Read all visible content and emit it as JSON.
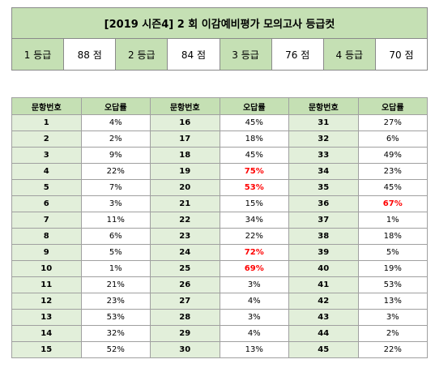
{
  "title": "[2019 시즌4] 2 회 이감예비평가 모의고사 등급컷",
  "grade_cuts": [
    {
      "grade": "1 등급",
      "score": "88 점"
    },
    {
      "grade": "2 등급",
      "score": "84 점"
    },
    {
      "grade": "3 등급",
      "score": "76 점"
    },
    {
      "grade": "4 등급",
      "score": "70 점"
    }
  ],
  "table_headers": {
    "number": "문항번호",
    "rate": "오답률"
  },
  "hot_color": "#ff0000",
  "rows": [
    [
      {
        "n": "1",
        "r": "4%",
        "hot": false
      },
      {
        "n": "16",
        "r": "45%",
        "hot": false
      },
      {
        "n": "31",
        "r": "27%",
        "hot": false
      }
    ],
    [
      {
        "n": "2",
        "r": "2%",
        "hot": false
      },
      {
        "n": "17",
        "r": "18%",
        "hot": false
      },
      {
        "n": "32",
        "r": "6%",
        "hot": false
      }
    ],
    [
      {
        "n": "3",
        "r": "9%",
        "hot": false
      },
      {
        "n": "18",
        "r": "45%",
        "hot": false
      },
      {
        "n": "33",
        "r": "49%",
        "hot": false
      }
    ],
    [
      {
        "n": "4",
        "r": "22%",
        "hot": false
      },
      {
        "n": "19",
        "r": "75%",
        "hot": true
      },
      {
        "n": "34",
        "r": "23%",
        "hot": false
      }
    ],
    [
      {
        "n": "5",
        "r": "7%",
        "hot": false
      },
      {
        "n": "20",
        "r": "53%",
        "hot": true
      },
      {
        "n": "35",
        "r": "45%",
        "hot": false
      }
    ],
    [
      {
        "n": "6",
        "r": "3%",
        "hot": false
      },
      {
        "n": "21",
        "r": "15%",
        "hot": false
      },
      {
        "n": "36",
        "r": "67%",
        "hot": true
      }
    ],
    [
      {
        "n": "7",
        "r": "11%",
        "hot": false
      },
      {
        "n": "22",
        "r": "34%",
        "hot": false
      },
      {
        "n": "37",
        "r": "1%",
        "hot": false
      }
    ],
    [
      {
        "n": "8",
        "r": "6%",
        "hot": false
      },
      {
        "n": "23",
        "r": "22%",
        "hot": false
      },
      {
        "n": "38",
        "r": "18%",
        "hot": false
      }
    ],
    [
      {
        "n": "9",
        "r": "5%",
        "hot": false
      },
      {
        "n": "24",
        "r": "72%",
        "hot": true
      },
      {
        "n": "39",
        "r": "5%",
        "hot": false
      }
    ],
    [
      {
        "n": "10",
        "r": "1%",
        "hot": false
      },
      {
        "n": "25",
        "r": "69%",
        "hot": true
      },
      {
        "n": "40",
        "r": "19%",
        "hot": false
      }
    ],
    [
      {
        "n": "11",
        "r": "21%",
        "hot": false
      },
      {
        "n": "26",
        "r": "3%",
        "hot": false
      },
      {
        "n": "41",
        "r": "53%",
        "hot": false
      }
    ],
    [
      {
        "n": "12",
        "r": "23%",
        "hot": false
      },
      {
        "n": "27",
        "r": "4%",
        "hot": false
      },
      {
        "n": "42",
        "r": "13%",
        "hot": false
      }
    ],
    [
      {
        "n": "13",
        "r": "53%",
        "hot": false
      },
      {
        "n": "28",
        "r": "3%",
        "hot": false
      },
      {
        "n": "43",
        "r": "3%",
        "hot": false
      }
    ],
    [
      {
        "n": "14",
        "r": "32%",
        "hot": false
      },
      {
        "n": "29",
        "r": "4%",
        "hot": false
      },
      {
        "n": "44",
        "r": "2%",
        "hot": false
      }
    ],
    [
      {
        "n": "15",
        "r": "52%",
        "hot": false
      },
      {
        "n": "30",
        "r": "13%",
        "hot": false
      },
      {
        "n": "45",
        "r": "22%",
        "hot": false
      }
    ]
  ]
}
